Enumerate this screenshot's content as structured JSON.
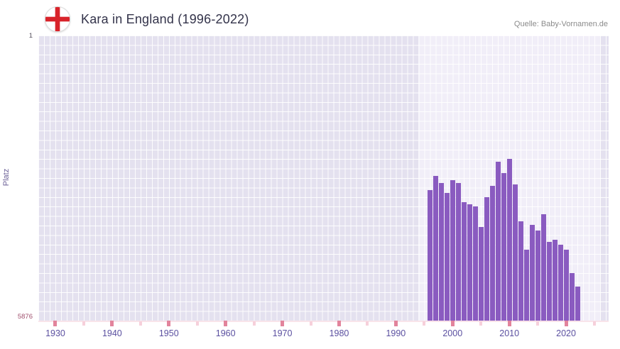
{
  "header": {
    "title": "Kara in England (1996-2022)",
    "source": "Quelle: Baby-Vornamen.de"
  },
  "chart_data": {
    "type": "bar",
    "title": "Kara in England (1996-2022)",
    "ylabel": "Platz",
    "y_axis": {
      "top_label": "1",
      "bottom_label": "5876",
      "min": 1,
      "max": 5876,
      "inverted": true
    },
    "x_axis": {
      "start": 1927,
      "end": 2027.5,
      "tick_years": [
        1930,
        1940,
        1950,
        1960,
        1970,
        1980,
        1990,
        2000,
        2010,
        2020
      ],
      "minor_tick_years": [
        1935,
        1945,
        1955,
        1965,
        1975,
        1985,
        1995,
        2005,
        2015,
        2025
      ]
    },
    "highlight_range": [
      1994,
      2026
    ],
    "years": [
      1996,
      1997,
      1998,
      1999,
      2000,
      2001,
      2002,
      2003,
      2004,
      2005,
      2006,
      2007,
      2008,
      2009,
      2010,
      2011,
      2012,
      2013,
      2014,
      2015,
      2016,
      2017,
      2018,
      2019,
      2020,
      2021,
      2022
    ],
    "values": [
      3180,
      2890,
      3040,
      3240,
      2980,
      3040,
      3430,
      3480,
      3530,
      3940,
      3330,
      3100,
      2600,
      2830,
      2540,
      3070,
      3830,
      4410,
      3910,
      4020,
      3680,
      4260,
      4210,
      4310,
      4410,
      4890,
      5180
    ],
    "colors": {
      "bar": "#8a5bc0",
      "plot_bg": "#e4e1ef",
      "highlight_bg": "#f1eef8",
      "major_tick": "#e2849c",
      "minor_tick": "#f6d0db",
      "axis_label": "#5b50a0"
    },
    "legend": null,
    "grid": true
  }
}
